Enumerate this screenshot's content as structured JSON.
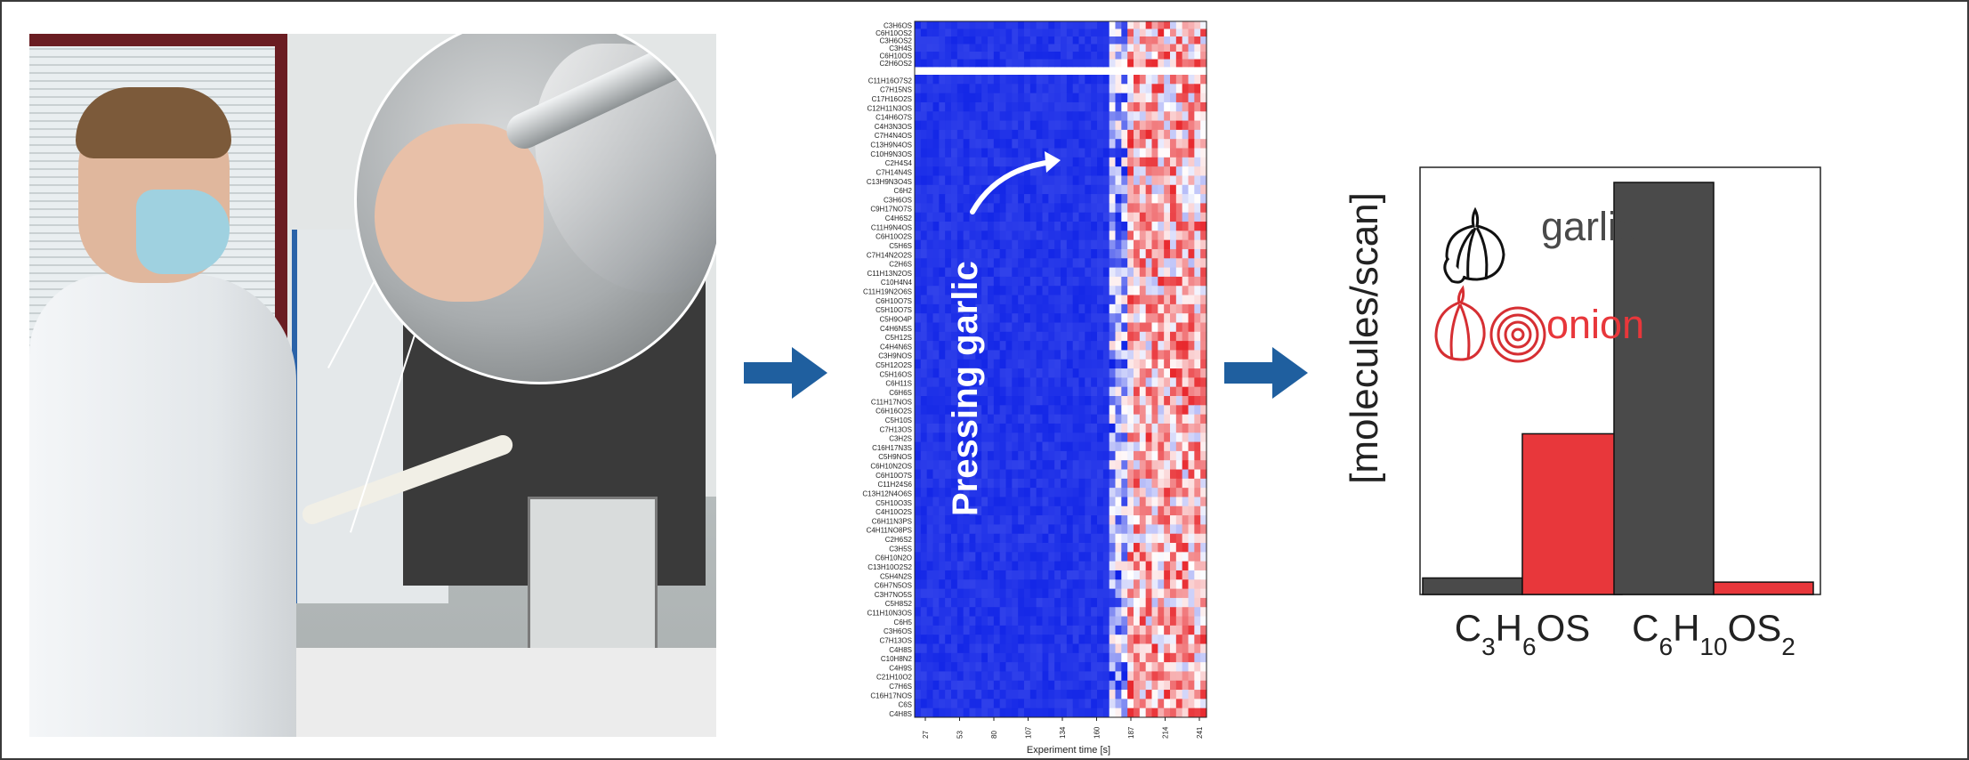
{
  "colors": {
    "garlic": "#4a4a4a",
    "onion": "#e8373b",
    "arrow": "#1f5f9f",
    "heat_low": "#0a1ee6",
    "heat_high": "#e8252a",
    "frame": "#3a3a3a"
  },
  "photo": {
    "description_icon": "lab-photo"
  },
  "arrows": [
    "right-arrow-icon",
    "right-arrow-icon"
  ],
  "heatmap": {
    "annotation": "Pressing garlic",
    "xlabel": "Experiment time [s]",
    "xticks": [
      "27",
      "53",
      "80",
      "107",
      "134",
      "160",
      "187",
      "214",
      "241"
    ],
    "rows_top": [
      "C3H6OS",
      "C6H10OS2",
      "C3H6OS2",
      "C3H4S",
      "C6H10OS",
      "C2H6OS2"
    ],
    "rows_main": [
      "C11H16O7S2",
      "C7H15NS",
      "C17H16O2S",
      "C12H11N3OS",
      "C14H6O7S",
      "C4H3N3OS",
      "C7H4N4OS",
      "C13H9N4OS",
      "C10H9N3OS",
      "C2H4S4",
      "C7H14N4S",
      "C13H9N3O4S",
      "C6H2",
      "C3H6OS",
      "C9H17NO7S",
      "C4H6S2",
      "C11H9N4OS",
      "C6H10O2S",
      "C5H6S",
      "C7H14N2O2S",
      "C2H6S",
      "C11H13N2OS",
      "C10H4N4",
      "C11H19N2O6S",
      "C6H10O7S",
      "C5H10O7S",
      "C5H9O4P",
      "C4H6N5S",
      "C5H12S",
      "C4H4N6S",
      "C3H9NOS",
      "C5H12O2S",
      "C5H16OS",
      "C6H11S",
      "C6H6S",
      "C11H17NOS",
      "C6H16O2S",
      "C5H10S",
      "C7H13OS",
      "C3H2S",
      "C16H17N3S",
      "C5H9NOS",
      "C6H10N2OS",
      "C6H10O7S",
      "C11H24S6",
      "C13H12N4O6S",
      "C5H10O3S",
      "C4H10O2S",
      "C6H11N3PS",
      "C4H11NO8PS",
      "C2H6S2",
      "C3H5S",
      "C6H10N2O",
      "C13H10O2S2",
      "C5H4N2S",
      "C6H7N5OS",
      "C3H7NO5S",
      "C5H8S2",
      "C11H10N3OS",
      "C6H5",
      "C3H6OS",
      "C7H13OS",
      "C4H8S",
      "C10H8N2",
      "C4H9S",
      "C21H10O2",
      "C7H6S",
      "C16H17NOS",
      "C6S",
      "C4H8S"
    ]
  },
  "chart_data": {
    "type": "bar",
    "categories": [
      "C3H6OS",
      "C6H10OS2"
    ],
    "series": [
      {
        "name": "garlic",
        "values": [
          4,
          100
        ]
      },
      {
        "name": "onion",
        "values": [
          39,
          3
        ]
      }
    ],
    "ylabel": "[molecules/scan]",
    "ylim": [
      0,
      100
    ],
    "xlabel": "",
    "legend_position": "top-left",
    "legend_icons": [
      "garlic-icon",
      "onion-icon"
    ],
    "grid": false
  }
}
